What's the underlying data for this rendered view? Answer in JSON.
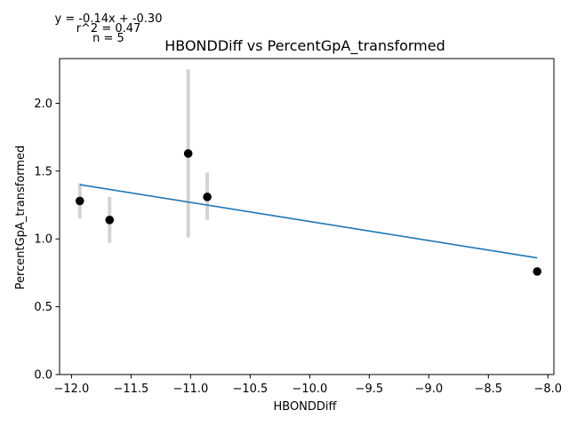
{
  "chart_data": {
    "type": "scatter",
    "title": "HBONDDiff vs PercentGpA_transformed",
    "xlabel": "HBONDDiff",
    "ylabel": "PercentGpA_transformed",
    "annotation": {
      "equation": "y = -0.14x + -0.30",
      "r2": "r^2 = 0.47",
      "n": "n = 5"
    },
    "xlim": [
      -12.1,
      -7.95
    ],
    "ylim": [
      0.0,
      2.33
    ],
    "xticks": [
      -12.0,
      -11.5,
      -11.0,
      -10.5,
      -10.0,
      -9.5,
      -9.0,
      -8.5,
      -8.0
    ],
    "xtick_labels": [
      "−12.0",
      "−11.5",
      "−11.0",
      "−10.5",
      "−10.0",
      "−9.5",
      "−9.0",
      "−8.5",
      "−8.0"
    ],
    "yticks": [
      0.0,
      0.5,
      1.0,
      1.5,
      2.0
    ],
    "ytick_labels": [
      "0.0",
      "0.5",
      "1.0",
      "1.5",
      "2.0"
    ],
    "points": [
      {
        "x": -11.93,
        "y": 1.28,
        "err_low": 1.15,
        "err_high": 1.41
      },
      {
        "x": -11.68,
        "y": 1.14,
        "err_low": 0.97,
        "err_high": 1.31
      },
      {
        "x": -11.02,
        "y": 1.63,
        "err_low": 1.01,
        "err_high": 2.25
      },
      {
        "x": -10.86,
        "y": 1.31,
        "err_low": 1.14,
        "err_high": 1.49
      },
      {
        "x": -8.09,
        "y": 0.76,
        "err_low": 0.73,
        "err_high": 0.79
      }
    ],
    "fit_line": {
      "x": [
        -11.93,
        -8.09
      ],
      "y": [
        1.4,
        0.86
      ]
    },
    "grid": false,
    "colors": {
      "points": "#000000",
      "errorbars": "#d3d3d3",
      "fit": "#1f77b4"
    }
  }
}
